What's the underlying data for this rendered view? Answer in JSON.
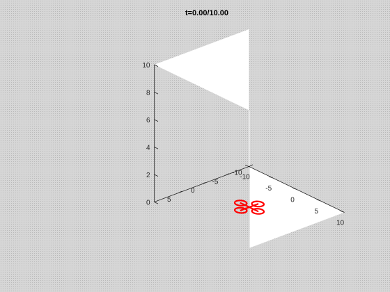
{
  "chart_data": {
    "type": "line",
    "title": "t=0.00/10.00",
    "projection": "3d",
    "grid": false,
    "xlim": [
      -10,
      10
    ],
    "ylim": [
      -10,
      10
    ],
    "zlim": [
      0,
      10
    ],
    "x_ticks": [
      -10,
      -5,
      0,
      5,
      10
    ],
    "y_ticks": [
      -10,
      -5,
      0,
      5
    ],
    "z_ticks": [
      0,
      2,
      4,
      6,
      8,
      10
    ],
    "x_tick_labels": [
      "-10",
      "-5",
      "0",
      "5",
      "10"
    ],
    "y_tick_labels": [
      "-10",
      "-5",
      "0",
      "5"
    ],
    "z_tick_labels": [
      "0",
      "2",
      "4",
      "6",
      "8",
      "10"
    ],
    "series": [
      {
        "marker": "quadcopter",
        "color": "#ff0000",
        "position": {
          "x": 0,
          "y": 0,
          "z": 0
        },
        "arm_length": 1.8,
        "rotor_radius": 0.9
      }
    ]
  },
  "colors": {
    "axes_face": "#ffffff",
    "axis_line": "#262626",
    "series": "#ff0000"
  }
}
